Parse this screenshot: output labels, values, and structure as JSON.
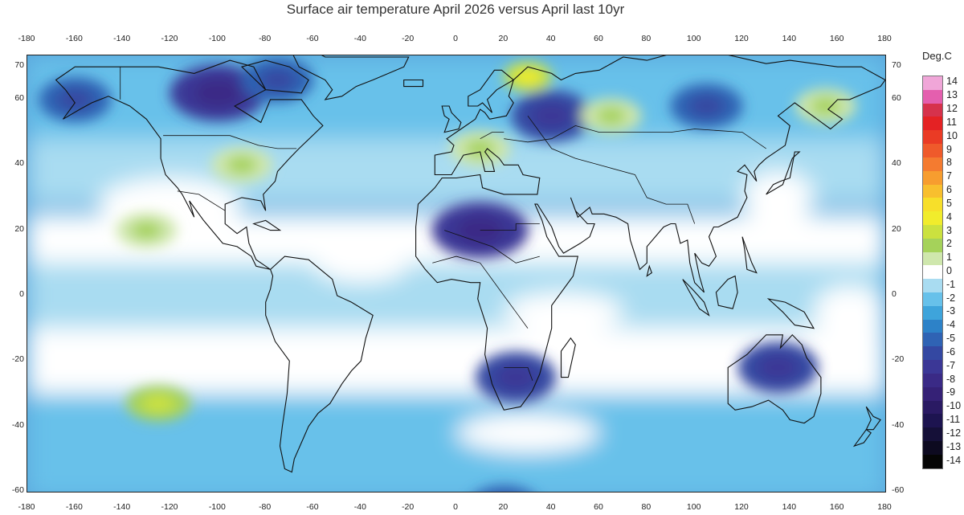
{
  "title": "Surface air temperature April 2026 versus April last 10yr",
  "colorbar": {
    "title": "Deg.C",
    "levels": [
      "14",
      "13",
      "12",
      "11",
      "10",
      "9",
      "8",
      "7",
      "6",
      "5",
      "4",
      "3",
      "2",
      "1",
      "0",
      "-1",
      "-2",
      "-3",
      "-4",
      "-5",
      "-6",
      "-7",
      "-8",
      "-9",
      "-10",
      "-11",
      "-12",
      "-13",
      "-14"
    ],
    "colors": [
      "#f0a6d8",
      "#e45fae",
      "#d6324c",
      "#e42224",
      "#ea3b25",
      "#ef5a2b",
      "#f47b30",
      "#f79d2f",
      "#f8bf2e",
      "#f7df2a",
      "#f1ec2c",
      "#cbe13f",
      "#a5d25a",
      "#cfe7ad",
      "#ffffff",
      "#a9dcf1",
      "#67c1ea",
      "#3ea4db",
      "#2d82c8",
      "#2f63b4",
      "#3448a2",
      "#3b3796",
      "#3a2a86",
      "#352176",
      "#2a1a63",
      "#1d1450",
      "#151038",
      "#0d0a20",
      "#050505"
    ]
  },
  "axes": {
    "lon_ticks": [
      "-180",
      "-160",
      "-140",
      "-120",
      "-100",
      "-80",
      "-60",
      "-40",
      "-20",
      "0",
      "20",
      "40",
      "60",
      "80",
      "100",
      "120",
      "140",
      "160",
      "180"
    ],
    "lat_ticks": [
      "70",
      "60",
      "40",
      "20",
      "0",
      "-20",
      "-40",
      "-60"
    ]
  },
  "anomaly_field": [
    {
      "lon": -100,
      "lat": 62,
      "value": -7
    },
    {
      "lon": -75,
      "lat": 66,
      "value": -5
    },
    {
      "lon": -160,
      "lat": 60,
      "value": -5
    },
    {
      "lon": -90,
      "lat": 40,
      "value": 1
    },
    {
      "lon": -130,
      "lat": 20,
      "value": 1
    },
    {
      "lon": -125,
      "lat": -33,
      "value": 2
    },
    {
      "lon": 30,
      "lat": 67,
      "value": 3
    },
    {
      "lon": 10,
      "lat": 45,
      "value": 1
    },
    {
      "lon": 40,
      "lat": 55,
      "value": -6
    },
    {
      "lon": 10,
      "lat": 20,
      "value": -7
    },
    {
      "lon": 25,
      "lat": -25,
      "value": -6
    },
    {
      "lon": 105,
      "lat": 58,
      "value": -5
    },
    {
      "lon": 65,
      "lat": 55,
      "value": 1
    },
    {
      "lon": 135,
      "lat": -22,
      "value": -6
    },
    {
      "lon": 155,
      "lat": 58,
      "value": 1
    },
    {
      "lon": 20,
      "lat": -65,
      "value": -5
    }
  ]
}
